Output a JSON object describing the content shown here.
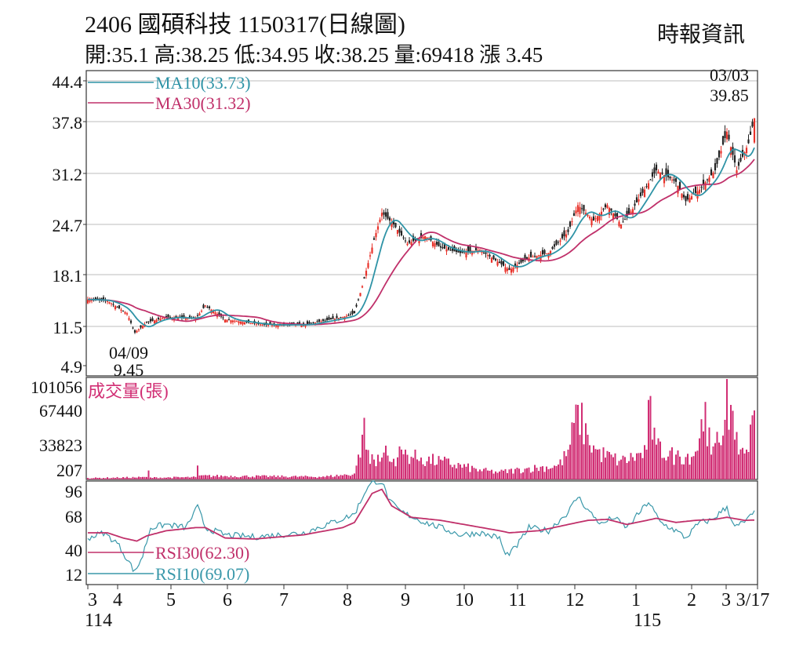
{
  "header": {
    "title": "2406  國碩科技 1150317(日線圖)",
    "quote": "開:35.1 高:38.25 低:34.95 收:38.25 量:69418 漲 3.45",
    "source": "時報資訊"
  },
  "colors": {
    "up": "#e8322a",
    "down": "#222222",
    "ma10": "#2e93a6",
    "ma30": "#c0306a",
    "volume": "#d12e74",
    "rsi30": "#c0306a",
    "rsi10": "#3a98aa",
    "grid": "#bdbdbd",
    "frame": "#333333"
  },
  "chart_data": [
    {
      "type": "candlestick",
      "name": "price",
      "ylim": [
        4.9,
        44.4
      ],
      "yticks": [
        "44.4",
        "37.8",
        "31.2",
        "24.7",
        "18.1",
        "11.5",
        "4.9"
      ],
      "legend": [
        {
          "label": "MA10(33.73)",
          "color": "#2e93a6"
        },
        {
          "label": "MA30(31.32)",
          "color": "#c0306a"
        }
      ],
      "annotations": [
        {
          "date": "03/03",
          "value": "39.85",
          "kind": "high"
        },
        {
          "date": "04/09",
          "value": "9.45",
          "kind": "low"
        }
      ],
      "xticks": [
        "3",
        "4",
        "5",
        "6",
        "7",
        "8",
        "9",
        "10",
        "11",
        "12",
        "1",
        "2",
        "3",
        "3/17"
      ],
      "year_labels": [
        {
          "label": "114",
          "month": "3"
        },
        {
          "label": "115",
          "month": "1"
        }
      ],
      "close_keypoints": [
        [
          0,
          14.8
        ],
        [
          10,
          14.6
        ],
        [
          20,
          13.0
        ],
        [
          24,
          10.5
        ],
        [
          30,
          11.8
        ],
        [
          40,
          12.5
        ],
        [
          55,
          12.3
        ],
        [
          60,
          14.0
        ],
        [
          70,
          12.2
        ],
        [
          90,
          11.5
        ],
        [
          110,
          11.5
        ],
        [
          130,
          12.5
        ],
        [
          136,
          13.0
        ],
        [
          140,
          16.5
        ],
        [
          146,
          22.5
        ],
        [
          150,
          26.0
        ],
        [
          156,
          24.5
        ],
        [
          163,
          22.0
        ],
        [
          172,
          23.0
        ],
        [
          180,
          21.5
        ],
        [
          190,
          20.8
        ],
        [
          200,
          21.2
        ],
        [
          210,
          19.5
        ],
        [
          215,
          18.6
        ],
        [
          225,
          20.2
        ],
        [
          235,
          20.8
        ],
        [
          245,
          23.5
        ],
        [
          250,
          27.0
        ],
        [
          258,
          25.0
        ],
        [
          265,
          27.0
        ],
        [
          272,
          24.5
        ],
        [
          278,
          26.5
        ],
        [
          290,
          31.5
        ],
        [
          300,
          30.0
        ],
        [
          305,
          27.5
        ],
        [
          312,
          29.0
        ],
        [
          320,
          31.5
        ],
        [
          326,
          36.5
        ],
        [
          331,
          31.5
        ],
        [
          337,
          35.0
        ],
        [
          340,
          38.25
        ]
      ],
      "ma10_last": 33.73,
      "ma30_last": 31.32,
      "last_bar": {
        "open": 35.1,
        "high": 38.25,
        "low": 34.95,
        "close": 38.25
      }
    },
    {
      "type": "bar",
      "name": "volume",
      "label": "成交量(張)",
      "ylim": [
        207,
        101056
      ],
      "yticks": [
        "101056",
        "67440",
        "33823",
        "207"
      ],
      "keypoints": [
        [
          0,
          1500
        ],
        [
          30,
          2500
        ],
        [
          31,
          9000
        ],
        [
          32,
          2000
        ],
        [
          55,
          2500
        ],
        [
          56,
          14000
        ],
        [
          57,
          4000
        ],
        [
          120,
          3000
        ],
        [
          136,
          6000
        ],
        [
          138,
          25000
        ],
        [
          139,
          22000
        ],
        [
          140,
          45000
        ],
        [
          141,
          62000
        ],
        [
          142,
          30000
        ],
        [
          146,
          20000
        ],
        [
          150,
          22000
        ],
        [
          152,
          34000
        ],
        [
          154,
          18000
        ],
        [
          160,
          30000
        ],
        [
          170,
          22000
        ],
        [
          180,
          20000
        ],
        [
          200,
          10000
        ],
        [
          210,
          8000
        ],
        [
          225,
          12000
        ],
        [
          240,
          15000
        ],
        [
          245,
          30000
        ],
        [
          250,
          75000
        ],
        [
          255,
          45000
        ],
        [
          260,
          30000
        ],
        [
          272,
          20000
        ],
        [
          285,
          30000
        ],
        [
          286,
          80000
        ],
        [
          290,
          35000
        ],
        [
          300,
          25000
        ],
        [
          310,
          28000
        ],
        [
          315,
          78000
        ],
        [
          318,
          25000
        ],
        [
          325,
          60000
        ],
        [
          326,
          101056
        ],
        [
          330,
          40000
        ],
        [
          336,
          30000
        ],
        [
          340,
          69418
        ]
      ]
    },
    {
      "type": "line",
      "name": "rsi",
      "ylim": [
        0,
        100
      ],
      "yticks": [
        "96",
        "68",
        "40",
        "12"
      ],
      "legend": [
        {
          "label": "RSI30(62.30)",
          "color": "#c0306a"
        },
        {
          "label": "RSI10(69.07)",
          "color": "#3a98aa"
        }
      ],
      "rsi30_keypoints": [
        [
          0,
          50
        ],
        [
          10,
          50
        ],
        [
          18,
          45
        ],
        [
          25,
          42
        ],
        [
          30,
          47
        ],
        [
          40,
          52
        ],
        [
          55,
          55
        ],
        [
          60,
          55
        ],
        [
          70,
          45
        ],
        [
          85,
          44
        ],
        [
          110,
          48
        ],
        [
          130,
          55
        ],
        [
          136,
          60
        ],
        [
          145,
          88
        ],
        [
          150,
          92
        ],
        [
          155,
          76
        ],
        [
          165,
          65
        ],
        [
          180,
          62
        ],
        [
          195,
          57
        ],
        [
          210,
          52
        ],
        [
          215,
          50
        ],
        [
          230,
          52
        ],
        [
          245,
          58
        ],
        [
          255,
          62
        ],
        [
          265,
          63
        ],
        [
          275,
          58
        ],
        [
          290,
          64
        ],
        [
          300,
          60
        ],
        [
          310,
          62
        ],
        [
          320,
          63
        ],
        [
          326,
          65
        ],
        [
          335,
          62
        ],
        [
          340,
          62.3
        ]
      ],
      "rsi10_keypoints": [
        [
          0,
          45
        ],
        [
          8,
          50
        ],
        [
          15,
          40
        ],
        [
          20,
          25
        ],
        [
          24,
          12
        ],
        [
          28,
          28
        ],
        [
          32,
          55
        ],
        [
          40,
          58
        ],
        [
          50,
          55
        ],
        [
          56,
          75
        ],
        [
          60,
          55
        ],
        [
          70,
          48
        ],
        [
          85,
          46
        ],
        [
          110,
          50
        ],
        [
          125,
          60
        ],
        [
          136,
          68
        ],
        [
          142,
          92
        ],
        [
          146,
          100
        ],
        [
          150,
          99
        ],
        [
          154,
          80
        ],
        [
          160,
          70
        ],
        [
          172,
          60
        ],
        [
          180,
          55
        ],
        [
          190,
          48
        ],
        [
          200,
          50
        ],
        [
          210,
          45
        ],
        [
          213,
          28
        ],
        [
          218,
          35
        ],
        [
          225,
          55
        ],
        [
          235,
          52
        ],
        [
          245,
          70
        ],
        [
          250,
          85
        ],
        [
          255,
          72
        ],
        [
          262,
          58
        ],
        [
          268,
          65
        ],
        [
          275,
          55
        ],
        [
          286,
          80
        ],
        [
          292,
          60
        ],
        [
          300,
          52
        ],
        [
          305,
          45
        ],
        [
          312,
          60
        ],
        [
          318,
          62
        ],
        [
          326,
          75
        ],
        [
          330,
          55
        ],
        [
          336,
          62
        ],
        [
          340,
          69.07
        ]
      ]
    }
  ]
}
